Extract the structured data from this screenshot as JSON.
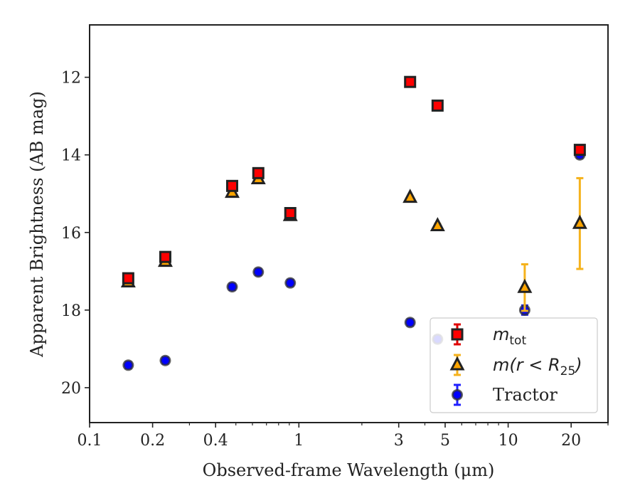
{
  "chart_data": {
    "type": "scatter",
    "title": "",
    "xlabel": "Observed-frame Wavelength (μm)",
    "ylabel": "Apparent Brightness (AB mag)",
    "xscale": "log",
    "xlim": [
      0.1,
      30
    ],
    "ylim": [
      20.9,
      10.65
    ],
    "y_inverted": true,
    "grid": false,
    "legend_position": "lower-right",
    "x_ticks": [
      {
        "value": 0.1,
        "label": "0.1"
      },
      {
        "value": 0.2,
        "label": "0.2"
      },
      {
        "value": 0.4,
        "label": "0.4"
      },
      {
        "value": 1,
        "label": "1"
      },
      {
        "value": 3,
        "label": "3"
      },
      {
        "value": 5,
        "label": "5"
      },
      {
        "value": 10,
        "label": "10"
      },
      {
        "value": 20,
        "label": "20"
      }
    ],
    "y_ticks": [
      {
        "value": 12,
        "label": "12"
      },
      {
        "value": 14,
        "label": "14"
      },
      {
        "value": 16,
        "label": "16"
      },
      {
        "value": 18,
        "label": "18"
      },
      {
        "value": 20,
        "label": "20"
      }
    ],
    "series": [
      {
        "name": "m_tot",
        "legend_main": "m",
        "legend_sub": "tot",
        "marker": "square",
        "face_color": "#ff0000",
        "edge_color": "#222222",
        "errorbar_color": "#e00000",
        "points": [
          {
            "x": 0.153,
            "y": 17.18,
            "err": 0.08
          },
          {
            "x": 0.23,
            "y": 16.63,
            "err": 0.06
          },
          {
            "x": 0.48,
            "y": 14.8,
            "err": 0.05
          },
          {
            "x": 0.64,
            "y": 14.47,
            "err": 0.05
          },
          {
            "x": 0.91,
            "y": 15.5,
            "err": 0.05
          },
          {
            "x": 3.4,
            "y": 12.12,
            "err": 0.03
          },
          {
            "x": 4.6,
            "y": 12.73,
            "err": 0.03
          },
          {
            "x": 22.0,
            "y": 13.87,
            "err": 0.08
          }
        ]
      },
      {
        "name": "m(r < R25)",
        "legend_main": "m(r < R",
        "legend_sub": "25",
        "marker": "triangle",
        "face_color": "#ffa500",
        "edge_color": "#222222",
        "errorbar_color": "#f5b21c",
        "points": [
          {
            "x": 0.153,
            "y": 17.28,
            "err": 0.08
          },
          {
            "x": 0.23,
            "y": 16.75,
            "err": 0.06
          },
          {
            "x": 0.48,
            "y": 14.97,
            "err": 0.05
          },
          {
            "x": 0.64,
            "y": 14.62,
            "err": 0.05
          },
          {
            "x": 0.91,
            "y": 15.57,
            "err": 0.05
          },
          {
            "x": 3.4,
            "y": 15.1,
            "err": 0.03
          },
          {
            "x": 4.6,
            "y": 15.83,
            "err": 0.05
          },
          {
            "x": 12.0,
            "y": 17.42,
            "err": 0.6
          },
          {
            "x": 22.0,
            "y": 15.77,
            "err": 1.17
          }
        ]
      },
      {
        "name": "Tractor",
        "legend_main": "Tractor",
        "legend_sub": "",
        "marker": "circle",
        "face_color": "#0000ff",
        "edge_color": "#333333",
        "errorbar_color": "#2020ff",
        "points": [
          {
            "x": 0.153,
            "y": 19.42,
            "err": 0.08
          },
          {
            "x": 0.23,
            "y": 19.3,
            "err": 0.08
          },
          {
            "x": 0.48,
            "y": 17.4,
            "err": 0.08
          },
          {
            "x": 0.64,
            "y": 17.02,
            "err": 0.08
          },
          {
            "x": 0.91,
            "y": 17.3,
            "err": 0.08
          },
          {
            "x": 3.4,
            "y": 18.32,
            "err": 0.08
          },
          {
            "x": 4.6,
            "y": 18.75,
            "err": 0.08
          },
          {
            "x": 12.0,
            "y": 18.0,
            "err": 0.12
          },
          {
            "x": 22.0,
            "y": 14.0,
            "err": 0.08
          }
        ]
      }
    ]
  }
}
